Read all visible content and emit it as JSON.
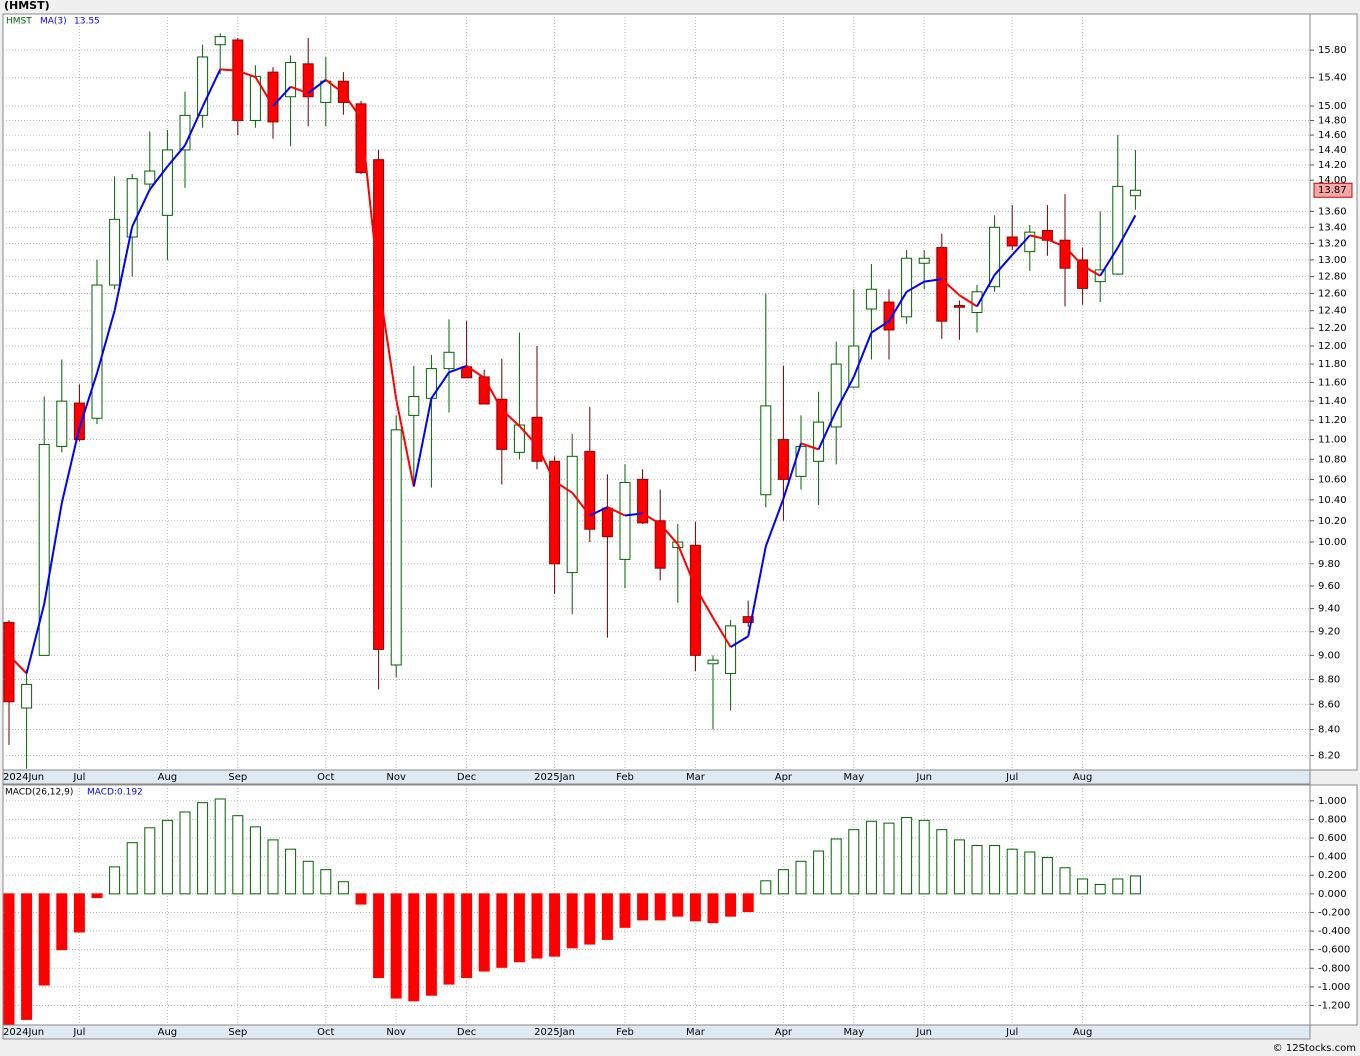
{
  "chart_data": [
    {
      "type": "candlestick",
      "title": "(HMST)",
      "symbol": "HMST",
      "categories": [
        "2024Jun",
        null,
        null,
        null,
        "Jul",
        null,
        null,
        null,
        null,
        "Aug",
        null,
        null,
        null,
        "Sep",
        null,
        null,
        null,
        null,
        "Oct",
        null,
        null,
        null,
        "Nov",
        null,
        null,
        null,
        "Dec",
        null,
        null,
        null,
        null,
        "2025Jan",
        null,
        null,
        null,
        "Feb",
        null,
        null,
        null,
        "Mar",
        null,
        null,
        null,
        null,
        "Apr",
        null,
        null,
        null,
        "May",
        null,
        null,
        null,
        "Jun",
        null,
        null,
        null,
        null,
        "Jul",
        null,
        null,
        null,
        "Aug",
        null,
        null,
        null
      ],
      "open": [
        9.28,
        8.57,
        9.0,
        10.93,
        11.38,
        11.22,
        12.7,
        13.28,
        13.95,
        13.55,
        14.4,
        14.87,
        15.88,
        15.95,
        14.8,
        15.48,
        15.13,
        15.6,
        15.05,
        15.35,
        15.03,
        14.27,
        8.92,
        11.25,
        11.43,
        11.75,
        11.77,
        11.66,
        11.42,
        10.87,
        11.23,
        10.78,
        9.72,
        10.88,
        10.32,
        9.84,
        10.6,
        10.2,
        9.95,
        9.97,
        8.93,
        8.85,
        9.33,
        10.45,
        11.0,
        10.63,
        10.78,
        11.13,
        11.55,
        12.42,
        12.5,
        12.33,
        12.96,
        13.15,
        12.46,
        12.38,
        12.68,
        13.28,
        13.1,
        13.36,
        13.24,
        13.0,
        12.74,
        12.83,
        13.8
      ],
      "high": [
        9.3,
        8.88,
        11.45,
        11.85,
        11.58,
        13.0,
        14.05,
        14.08,
        14.65,
        14.67,
        15.2,
        15.88,
        16.05,
        15.98,
        15.58,
        15.55,
        15.72,
        15.98,
        15.7,
        15.48,
        15.07,
        14.4,
        11.25,
        11.78,
        11.9,
        12.3,
        12.28,
        11.74,
        11.86,
        12.15,
        12.0,
        10.83,
        11.06,
        11.34,
        10.65,
        10.75,
        10.7,
        10.5,
        10.17,
        10.19,
        9.0,
        9.3,
        9.47,
        12.6,
        11.78,
        11.25,
        11.5,
        12.05,
        12.65,
        12.95,
        12.65,
        13.12,
        13.12,
        13.32,
        12.52,
        12.7,
        13.55,
        13.68,
        13.43,
        13.68,
        13.82,
        13.15,
        13.6,
        14.6,
        14.4
      ],
      "low": [
        8.28,
        8.1,
        9.0,
        10.87,
        10.98,
        11.16,
        12.65,
        12.8,
        13.86,
        13.0,
        13.9,
        14.7,
        15.45,
        14.6,
        14.7,
        14.55,
        14.45,
        14.72,
        14.72,
        14.88,
        14.08,
        8.72,
        8.82,
        10.55,
        10.52,
        11.28,
        11.65,
        11.37,
        10.55,
        10.8,
        10.7,
        9.53,
        9.35,
        10.0,
        9.15,
        9.58,
        10.17,
        9.65,
        9.45,
        8.87,
        8.4,
        8.55,
        9.24,
        10.33,
        10.2,
        10.5,
        10.35,
        10.75,
        11.54,
        11.85,
        11.85,
        12.25,
        12.65,
        12.08,
        12.07,
        12.15,
        12.62,
        13.12,
        12.87,
        13.05,
        12.45,
        12.47,
        12.5,
        12.82,
        13.62
      ],
      "close": [
        8.62,
        8.76,
        10.95,
        11.4,
        11.0,
        12.7,
        13.5,
        14.02,
        14.12,
        14.4,
        14.87,
        15.7,
        16.0,
        14.8,
        15.42,
        14.78,
        15.62,
        15.13,
        15.35,
        15.05,
        14.1,
        9.05,
        11.1,
        11.45,
        11.75,
        11.93,
        11.65,
        11.37,
        10.9,
        11.15,
        10.78,
        9.8,
        10.83,
        10.12,
        10.05,
        10.57,
        10.18,
        9.76,
        10.0,
        9.0,
        8.96,
        9.25,
        9.28,
        11.35,
        10.6,
        10.93,
        11.18,
        11.8,
        12.0,
        12.65,
        12.18,
        13.02,
        13.02,
        12.28,
        12.44,
        12.62,
        13.4,
        13.17,
        13.34,
        13.24,
        12.9,
        12.66,
        12.88,
        13.92,
        13.87
      ],
      "up_color": "#006400",
      "down_color": "#ff0000",
      "series": [
        {
          "name": "MA(3)",
          "up_color": "#0000ff",
          "down_color": "#ff0000",
          "values": [
            9.0,
            8.85,
            9.44,
            10.37,
            11.12,
            11.7,
            12.4,
            13.41,
            13.88,
            14.18,
            14.46,
            14.99,
            15.52,
            15.5,
            15.41,
            15.0,
            15.27,
            15.18,
            15.37,
            15.18,
            14.83,
            12.73,
            11.42,
            10.53,
            11.43,
            11.71,
            11.78,
            11.65,
            11.31,
            11.14,
            10.94,
            10.58,
            10.47,
            10.25,
            10.33,
            10.25,
            10.27,
            10.17,
            9.98,
            9.59,
            9.32,
            9.07,
            9.16,
            9.96,
            10.41,
            10.96,
            10.9,
            11.3,
            11.66,
            12.15,
            12.28,
            12.62,
            12.74,
            12.77,
            12.58,
            12.45,
            12.82,
            13.06,
            13.3,
            13.25,
            13.16,
            12.93,
            12.81,
            13.15,
            13.55
          ]
        }
      ],
      "log_scale": true,
      "grid": true,
      "ylim": [
        8.09,
        16.34
      ],
      "yticks": [
        {
          "value": 8.2,
          "label": "8.20"
        },
        {
          "value": 8.4,
          "label": "8.40"
        },
        {
          "value": 8.6,
          "label": "8.60"
        },
        {
          "value": 8.8,
          "label": "8.80"
        },
        {
          "value": 9.0,
          "label": "9.00"
        },
        {
          "value": 9.2,
          "label": "9.20"
        },
        {
          "value": 9.4,
          "label": "9.40"
        },
        {
          "value": 9.6,
          "label": "9.60"
        },
        {
          "value": 9.8,
          "label": "9.80"
        },
        {
          "value": 10.0,
          "label": "10.00"
        },
        {
          "value": 10.2,
          "label": "10.20"
        },
        {
          "value": 10.4,
          "label": "10.40"
        },
        {
          "value": 10.6,
          "label": "10.60"
        },
        {
          "value": 10.8,
          "label": "10.80"
        },
        {
          "value": 11.0,
          "label": "11.00"
        },
        {
          "value": 11.2,
          "label": "11.20"
        },
        {
          "value": 11.4,
          "label": "11.40"
        },
        {
          "value": 11.6,
          "label": "11.60"
        },
        {
          "value": 11.8,
          "label": "11.80"
        },
        {
          "value": 12.0,
          "label": "12.00"
        },
        {
          "value": 12.2,
          "label": "12.20"
        },
        {
          "value": 12.4,
          "label": "12.40"
        },
        {
          "value": 12.6,
          "label": "12.60"
        },
        {
          "value": 12.8,
          "label": "12.80"
        },
        {
          "value": 13.0,
          "label": "13.00"
        },
        {
          "value": 13.2,
          "label": "13.20"
        },
        {
          "value": 13.4,
          "label": "13.40"
        },
        {
          "value": 13.6,
          "label": "13.60"
        },
        {
          "value": 14.0,
          "label": "14.00"
        },
        {
          "value": 14.2,
          "label": "14.20"
        },
        {
          "value": 14.4,
          "label": "14.40"
        },
        {
          "value": 14.6,
          "label": "14.60"
        },
        {
          "value": 14.8,
          "label": "14.80"
        },
        {
          "value": 15.0,
          "label": "15.00"
        },
        {
          "value": 15.4,
          "label": "15.40"
        },
        {
          "value": 15.8,
          "label": "15.80"
        }
      ]
    },
    {
      "type": "bar",
      "title": "MACD(26,12,9)",
      "legend": "MACD:0.192",
      "values": [
        -1.4,
        -1.35,
        -0.98,
        -0.6,
        -0.41,
        -0.04,
        0.29,
        0.55,
        0.71,
        0.79,
        0.88,
        0.98,
        1.02,
        0.84,
        0.72,
        0.58,
        0.48,
        0.35,
        0.26,
        0.13,
        -0.11,
        -0.9,
        -1.12,
        -1.15,
        -1.09,
        -0.97,
        -0.9,
        -0.83,
        -0.79,
        -0.73,
        -0.69,
        -0.67,
        -0.58,
        -0.54,
        -0.49,
        -0.36,
        -0.28,
        -0.28,
        -0.24,
        -0.29,
        -0.31,
        -0.24,
        -0.19,
        0.14,
        0.26,
        0.35,
        0.46,
        0.59,
        0.69,
        0.78,
        0.76,
        0.82,
        0.79,
        0.69,
        0.58,
        0.52,
        0.52,
        0.48,
        0.45,
        0.39,
        0.28,
        0.16,
        0.1,
        0.16,
        0.192
      ],
      "pos_color": "#006400",
      "neg_color": "#ff0000",
      "grid": true,
      "ylim": [
        -1.41,
        1.17
      ],
      "yticks": [
        {
          "value": 1.0,
          "label": "1.000"
        },
        {
          "value": 0.8,
          "label": "0.800"
        },
        {
          "value": 0.6,
          "label": "0.600"
        },
        {
          "value": 0.4,
          "label": "0.400"
        },
        {
          "value": 0.2,
          "label": "0.200"
        },
        {
          "value": 0,
          "label": "0.000"
        },
        {
          "value": -0.2,
          "label": "-0.200"
        },
        {
          "value": -0.4,
          "label": "-0.400"
        },
        {
          "value": -0.6,
          "label": "-0.600"
        },
        {
          "value": -0.8,
          "label": "-0.800"
        },
        {
          "value": -1.0,
          "label": "-1.000"
        },
        {
          "value": -1.2,
          "label": "-1.200"
        }
      ]
    }
  ],
  "footer": "© 12Stocks.com"
}
